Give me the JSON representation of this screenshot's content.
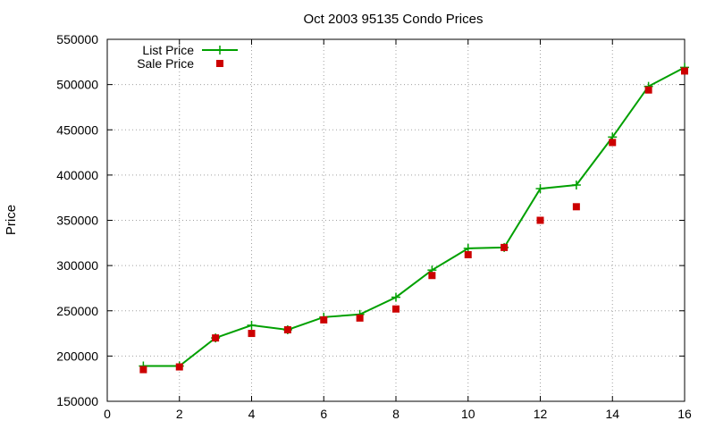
{
  "chart_data": {
    "type": "line",
    "title": "Oct 2003 95135 Condo Prices",
    "xlabel": "",
    "ylabel": "Price",
    "xlim": [
      0,
      16
    ],
    "ylim": [
      150000,
      550000
    ],
    "xticks": [
      0,
      2,
      4,
      6,
      8,
      10,
      12,
      14,
      16
    ],
    "yticks": [
      150000,
      200000,
      250000,
      300000,
      350000,
      400000,
      450000,
      500000,
      550000
    ],
    "grid": true,
    "legend_position": "top-left",
    "series": [
      {
        "name": "List Price",
        "style": "line+cross",
        "color": "#00a000",
        "x": [
          1,
          2,
          3,
          4,
          5,
          6,
          7,
          8,
          9,
          10,
          11,
          12,
          13,
          14,
          15,
          16
        ],
        "values": [
          189000,
          189000,
          220000,
          234000,
          229000,
          243000,
          246000,
          265000,
          295000,
          319000,
          320000,
          385000,
          389000,
          442000,
          498000,
          519000
        ]
      },
      {
        "name": "Sale Price",
        "style": "square",
        "color": "#cc0000",
        "x": [
          1,
          2,
          3,
          4,
          5,
          6,
          7,
          8,
          9,
          10,
          11,
          12,
          13,
          14,
          15,
          16
        ],
        "values": [
          185000,
          188000,
          220000,
          225000,
          229000,
          240000,
          242000,
          252000,
          289000,
          312000,
          320000,
          350000,
          365000,
          436000,
          494000,
          515000
        ]
      }
    ]
  }
}
